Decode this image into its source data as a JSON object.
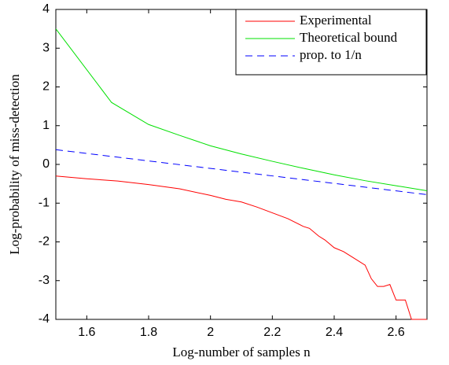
{
  "chart_data": {
    "type": "line",
    "xlabel": "Log-number of samples n",
    "ylabel": "Log-probability of miss-detection",
    "xlim": [
      1.5,
      2.7
    ],
    "ylim": [
      -4,
      4
    ],
    "xticks": [
      1.6,
      1.8,
      2,
      2.2,
      2.4,
      2.6
    ],
    "yticks": [
      -4,
      -3,
      -2,
      -1,
      0,
      1,
      2,
      3,
      4
    ],
    "grid": false,
    "legend": "northeast",
    "series": [
      {
        "name": "Experimental",
        "color": "#ff0000",
        "dash": false,
        "x": [
          1.5,
          1.6,
          1.7,
          1.8,
          1.9,
          2.0,
          2.05,
          2.1,
          2.15,
          2.2,
          2.25,
          2.3,
          2.32,
          2.35,
          2.37,
          2.4,
          2.43,
          2.46,
          2.5,
          2.52,
          2.54,
          2.56,
          2.58,
          2.6,
          2.63,
          2.65,
          2.7
        ],
        "values": [
          -0.3,
          -0.37,
          -0.43,
          -0.52,
          -0.63,
          -0.8,
          -0.9,
          -0.97,
          -1.1,
          -1.25,
          -1.4,
          -1.6,
          -1.65,
          -1.85,
          -1.95,
          -2.15,
          -2.25,
          -2.4,
          -2.6,
          -2.95,
          -3.15,
          -3.15,
          -3.1,
          -3.5,
          -3.5,
          -4.0,
          -4.0
        ]
      },
      {
        "name": "Theoretical bound",
        "color": "#00e000",
        "dash": false,
        "x": [
          1.5,
          1.68,
          1.8,
          1.9,
          2.0,
          2.1,
          2.2,
          2.3,
          2.4,
          2.5,
          2.6,
          2.7
        ],
        "values": [
          3.5,
          1.6,
          1.03,
          0.75,
          0.48,
          0.27,
          0.08,
          -0.1,
          -0.27,
          -0.42,
          -0.55,
          -0.68
        ]
      },
      {
        "name": "prop. to 1/n",
        "color": "#0000ff",
        "dash": true,
        "x": [
          1.5,
          2.7
        ],
        "values": [
          0.38,
          -0.78
        ]
      }
    ]
  }
}
